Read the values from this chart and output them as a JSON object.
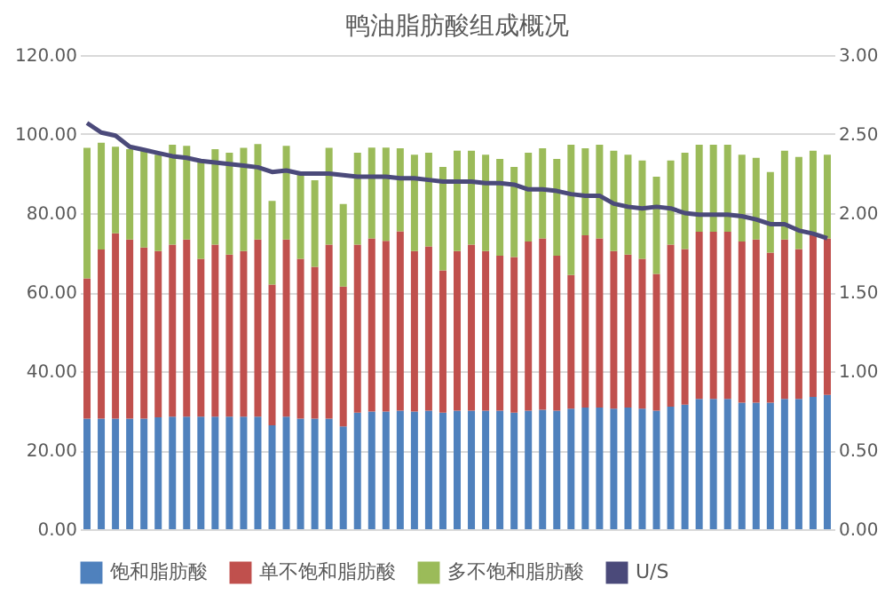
{
  "chart_data": {
    "type": "bar",
    "title": "鸭油脂肪酸组成概况",
    "stacked": true,
    "categories": [
      null,
      null,
      null,
      null,
      null,
      null,
      null,
      null,
      null,
      null,
      null,
      null,
      null,
      null,
      null,
      null,
      null,
      null,
      null,
      null,
      null,
      null,
      null,
      null,
      null,
      null,
      null,
      null,
      null,
      null,
      null,
      null,
      null,
      null,
      null,
      null,
      null,
      null,
      null,
      null,
      null,
      null,
      null,
      null,
      null,
      null,
      null,
      null,
      null,
      null,
      null,
      null,
      null
    ],
    "series": [
      {
        "name": "饱和脂肪酸",
        "color": "#4f81bd",
        "values": [
          28.0,
          28.0,
          28.0,
          28.0,
          28.0,
          28.3,
          28.5,
          28.5,
          28.5,
          28.5,
          28.5,
          28.5,
          28.5,
          26.3,
          28.5,
          28.0,
          28.0,
          28.0,
          26.0,
          29.5,
          29.8,
          29.8,
          30.0,
          29.8,
          30.0,
          29.5,
          30.0,
          30.0,
          30.0,
          30.0,
          29.5,
          30.0,
          30.2,
          30.0,
          30.5,
          30.8,
          30.8,
          30.5,
          30.8,
          30.5,
          30.0,
          31.0,
          31.5,
          33.0,
          33.0,
          33.0,
          32.0,
          32.0,
          32.0,
          33.0,
          33.0,
          33.5,
          34.0
        ]
      },
      {
        "name": "单不饱和脂肪酸",
        "color": "#c0504d",
        "values": [
          35.5,
          42.8,
          46.9,
          45.3,
          43.3,
          42.1,
          43.5,
          44.8,
          39.9,
          43.5,
          41.0,
          41.9,
          44.8,
          35.6,
          44.8,
          40.4,
          38.4,
          44.0,
          35.4,
          42.5,
          43.8,
          43.2,
          45.4,
          40.6,
          41.6,
          36.0,
          40.4,
          42.0,
          40.4,
          39.2,
          39.4,
          42.8,
          43.4,
          39.2,
          33.8,
          43.6,
          42.8,
          39.9,
          38.7,
          37.9,
          34.6,
          41.0,
          39.4,
          42.3,
          42.3,
          42.3,
          40.8,
          41.3,
          38.0,
          40.3,
          37.9,
          41.4,
          39.6
        ]
      },
      {
        "name": "多不饱和脂肪酸",
        "color": "#9bbb59",
        "values": [
          33.0,
          27.0,
          21.9,
          22.9,
          24.5,
          24.4,
          25.3,
          23.7,
          24.5,
          24.2,
          25.8,
          26.1,
          24.2,
          21.2,
          23.7,
          22.0,
          21.9,
          24.5,
          20.9,
          23.3,
          23.0,
          23.6,
          21.0,
          24.4,
          23.7,
          26.2,
          25.4,
          23.8,
          24.4,
          24.5,
          22.8,
          22.5,
          22.8,
          24.5,
          33.0,
          22.0,
          23.7,
          25.4,
          25.3,
          24.9,
          24.6,
          21.3,
          24.4,
          22.0,
          22.0,
          22.0,
          22.0,
          20.7,
          20.4,
          22.5,
          23.3,
          20.9,
          21.2
        ]
      },
      {
        "name": "U/S",
        "color": "#4b4a7a",
        "type": "line",
        "axis": "y2",
        "values": [
          2.57,
          2.51,
          2.49,
          2.42,
          2.4,
          2.38,
          2.36,
          2.35,
          2.33,
          2.32,
          2.31,
          2.3,
          2.29,
          2.26,
          2.27,
          2.25,
          2.25,
          2.25,
          2.24,
          2.23,
          2.23,
          2.23,
          2.22,
          2.22,
          2.21,
          2.2,
          2.2,
          2.2,
          2.19,
          2.19,
          2.18,
          2.15,
          2.15,
          2.14,
          2.12,
          2.11,
          2.11,
          2.06,
          2.04,
          2.03,
          2.04,
          2.03,
          2.0,
          1.99,
          1.99,
          1.99,
          1.98,
          1.96,
          1.93,
          1.93,
          1.89,
          1.87,
          1.84
        ]
      }
    ],
    "ylim": [
      0,
      120
    ],
    "yticks": [
      {
        "value": 0,
        "label": "0.00"
      },
      {
        "value": 20,
        "label": "20.00"
      },
      {
        "value": 40,
        "label": "40.00"
      },
      {
        "value": 60,
        "label": "60.00"
      },
      {
        "value": 80,
        "label": "80.00"
      },
      {
        "value": 100,
        "label": "100.00"
      },
      {
        "value": 120,
        "label": "120.00"
      }
    ],
    "y2lim": [
      0,
      3
    ],
    "y2ticks": [
      {
        "value": 0,
        "label": "0.00"
      },
      {
        "value": 0.5,
        "label": "0.50"
      },
      {
        "value": 1,
        "label": "1.00"
      },
      {
        "value": 1.5,
        "label": "1.50"
      },
      {
        "value": 2,
        "label": "2.00"
      },
      {
        "value": 2.5,
        "label": "2.50"
      },
      {
        "value": 3,
        "label": "3.00"
      }
    ],
    "grid": "y",
    "legend": "bottom",
    "line_style": "solid",
    "marker": "none"
  }
}
